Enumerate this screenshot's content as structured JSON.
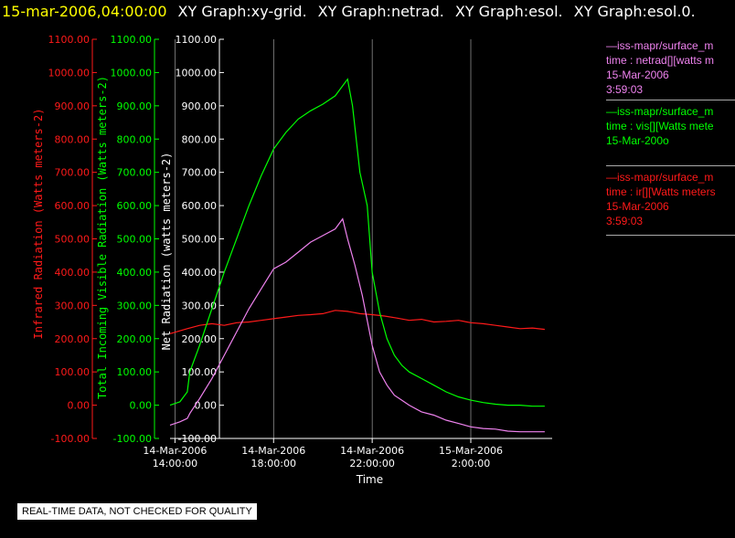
{
  "header": {
    "time": "15-mar-2006,04:00:00",
    "graphs": [
      "XY Graph:xy-grid.",
      "XY Graph:netrad.",
      "XY Graph:esol.",
      "XY Graph:esol.0."
    ]
  },
  "footer": {
    "note": "REAL-TIME DATA, NOT CHECKED FOR QUALITY"
  },
  "colors": {
    "ir": "#ff1a1a",
    "vis": "#00ff00",
    "net": "#ee82ee",
    "grid": "#bbbbbb",
    "axis": "#ffffff"
  },
  "legend": [
    {
      "color": "#ee82ee",
      "lines": [
        "—iss-mapr/surface_m",
        "time : netrad[][watts m",
        "15-Mar-2006",
        "3:59:03"
      ]
    },
    {
      "color": "#00ff00",
      "lines": [
        "—iss-mapr/surface_m",
        "time : vis[][Watts mete",
        "15-Mar-200o"
      ]
    },
    {
      "color": "#ff1a1a",
      "lines": [
        "—iss-mapr/surface_m",
        "time : ir[][Watts meters",
        "15-Mar-2006",
        "3:59:03"
      ]
    }
  ],
  "chart_data": {
    "type": "line",
    "xlabel": "Time",
    "x_ticks": [
      {
        "x": 14,
        "label": [
          "14-Mar-2006",
          "14:00:00"
        ]
      },
      {
        "x": 18,
        "label": [
          "14-Mar-2006",
          "18:00:00"
        ]
      },
      {
        "x": 22,
        "label": [
          "14-Mar-2006",
          "22:00:00"
        ]
      },
      {
        "x": 26,
        "label": [
          "15-Mar-2006",
          "2:00:00"
        ]
      }
    ],
    "x_unit": "hours since 14-Mar-2006 00:00",
    "xlim": [
      13.8,
      29.3
    ],
    "grid": true,
    "axes": [
      {
        "id": "ir",
        "ylabel": "Infrared Radiation (Watts meters-2)",
        "color": "#ff1a1a",
        "ylim": [
          -100,
          1100
        ]
      },
      {
        "id": "vis",
        "ylabel": "Total Incoming Visible Radiation (Watts meters-2)",
        "color": "#00ff00",
        "ylim": [
          -100,
          1100
        ]
      },
      {
        "id": "net",
        "ylabel": "Net Radiation (watts meters-2)",
        "color": "#ffffff",
        "ylim": [
          -100,
          1100
        ]
      }
    ],
    "y_ticks": [
      -100,
      0,
      100,
      200,
      300,
      400,
      500,
      600,
      700,
      800,
      900,
      1000,
      1100
    ],
    "y_tick_labels": [
      "-100.00",
      "0.00",
      "100.00",
      "200.00",
      "300.00",
      "400.00",
      "500.00",
      "600.00",
      "700.00",
      "800.00",
      "900.00",
      "1000.00",
      "1100.00"
    ],
    "series": [
      {
        "axis": "ir",
        "color": "#ff1a1a",
        "x": [
          13.8,
          14.5,
          15.0,
          15.5,
          16.0,
          16.5,
          17.0,
          17.5,
          18.0,
          18.5,
          19.0,
          19.5,
          20.0,
          20.5,
          21.0,
          21.5,
          22.0,
          22.5,
          23.0,
          23.5,
          24.0,
          24.5,
          25.0,
          25.5,
          26.0,
          26.5,
          27.0,
          27.5,
          28.0,
          28.5,
          29.0
        ],
        "y": [
          215,
          230,
          240,
          245,
          240,
          248,
          250,
          255,
          260,
          265,
          270,
          272,
          275,
          285,
          282,
          275,
          272,
          268,
          262,
          255,
          258,
          250,
          252,
          255,
          248,
          245,
          240,
          235,
          230,
          232,
          228
        ]
      },
      {
        "axis": "vis",
        "color": "#00ff00",
        "x": [
          13.8,
          14.2,
          14.5,
          14.6,
          15.0,
          15.5,
          16.0,
          16.5,
          17.0,
          17.5,
          18.0,
          18.5,
          19.0,
          19.5,
          20.0,
          20.5,
          21.0,
          21.2,
          21.5,
          21.8,
          22.0,
          22.3,
          22.6,
          22.9,
          23.2,
          23.5,
          24.0,
          24.5,
          25.0,
          25.5,
          26.0,
          26.5,
          27.0,
          27.5,
          28.0,
          28.5,
          29.0
        ],
        "y": [
          0,
          10,
          40,
          100,
          180,
          290,
          400,
          500,
          600,
          690,
          770,
          820,
          860,
          885,
          905,
          930,
          980,
          900,
          700,
          600,
          400,
          280,
          200,
          150,
          120,
          100,
          80,
          60,
          40,
          25,
          15,
          8,
          3,
          0,
          0,
          -3,
          -3
        ]
      },
      {
        "axis": "net",
        "color": "#ee82ee",
        "x": [
          13.8,
          14.2,
          14.5,
          14.6,
          15.0,
          15.5,
          16.0,
          16.5,
          17.0,
          17.5,
          18.0,
          18.5,
          19.0,
          19.5,
          20.0,
          20.5,
          20.8,
          21.0,
          21.3,
          21.6,
          22.0,
          22.3,
          22.6,
          22.9,
          23.2,
          23.5,
          24.0,
          24.5,
          25.0,
          25.5,
          26.0,
          26.5,
          27.0,
          27.5,
          28.0,
          28.5,
          29.0
        ],
        "y": [
          -60,
          -50,
          -40,
          -25,
          20,
          80,
          150,
          220,
          290,
          350,
          410,
          430,
          460,
          490,
          510,
          530,
          560,
          500,
          420,
          330,
          180,
          100,
          60,
          30,
          15,
          0,
          -20,
          -30,
          -45,
          -55,
          -65,
          -70,
          -72,
          -78,
          -80,
          -80,
          -80
        ]
      }
    ]
  }
}
